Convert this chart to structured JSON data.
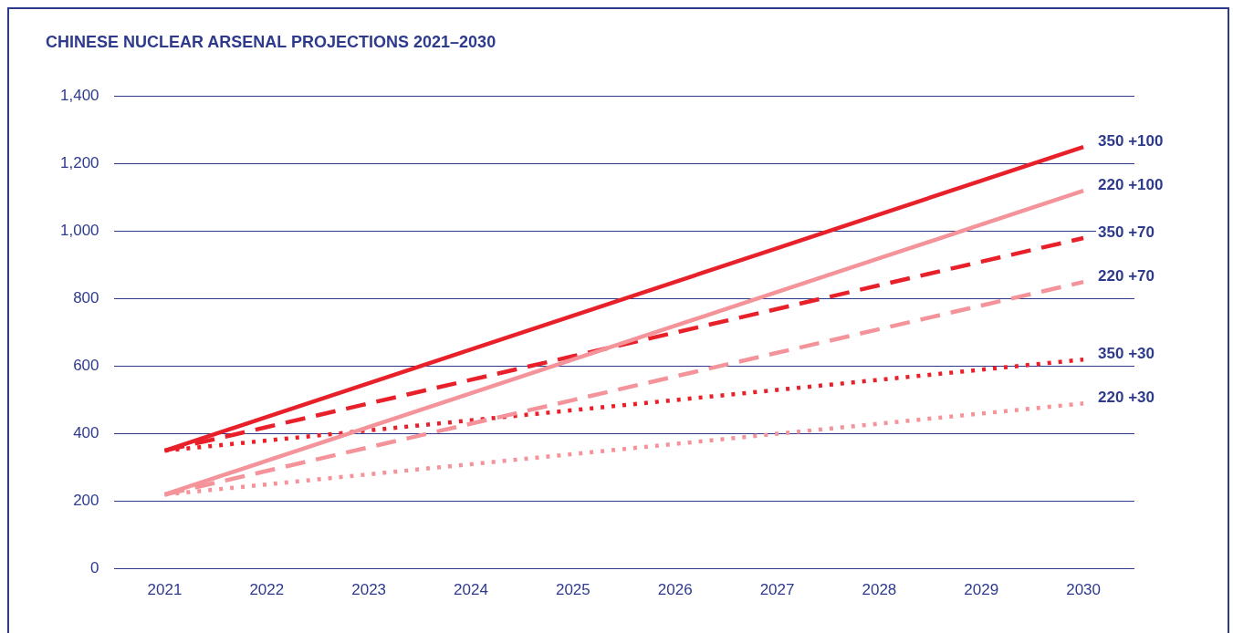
{
  "chart_data": {
    "type": "line",
    "title": "CHINESE NUCLEAR ARSENAL PROJECTIONS 2021–2030",
    "categories": [
      "2021",
      "2022",
      "2023",
      "2024",
      "2025",
      "2026",
      "2027",
      "2028",
      "2029",
      "2030"
    ],
    "ylim": [
      0,
      1400
    ],
    "yticks": [
      0,
      {
        "value": 200,
        "label": "200"
      },
      {
        "value": 400,
        "label": "400"
      },
      {
        "value": 600,
        "label": "600"
      },
      {
        "value": 800,
        "label": "800"
      },
      {
        "value": 1000,
        "label": "1,000"
      },
      {
        "value": 1200,
        "label": "1,200"
      },
      {
        "value": 1400,
        "label": "1,400"
      }
    ],
    "grid": "y",
    "legend": false,
    "marker": "none",
    "series": [
      {
        "name": "350 +100",
        "color": "#e8202a",
        "line_style": "solid",
        "values": [
          350,
          450,
          550,
          650,
          750,
          850,
          950,
          1050,
          1150,
          1250
        ]
      },
      {
        "name": "220 +100",
        "color": "#f4939a",
        "line_style": "solid",
        "values": [
          220,
          320,
          420,
          520,
          620,
          720,
          820,
          920,
          1020,
          1120
        ]
      },
      {
        "name": "350 +70",
        "color": "#e8202a",
        "line_style": "dashed",
        "values": [
          350,
          420,
          490,
          560,
          630,
          700,
          770,
          840,
          910,
          980
        ]
      },
      {
        "name": "220 +70",
        "color": "#f4939a",
        "line_style": "dashed",
        "values": [
          220,
          290,
          360,
          430,
          500,
          570,
          640,
          710,
          780,
          850
        ]
      },
      {
        "name": "350 +30",
        "color": "#e8202a",
        "line_style": "dotted",
        "values": [
          350,
          380,
          410,
          440,
          470,
          500,
          530,
          560,
          590,
          620
        ]
      },
      {
        "name": "220 +30",
        "color": "#f4939a",
        "line_style": "dotted",
        "values": [
          220,
          250,
          280,
          310,
          340,
          370,
          400,
          430,
          460,
          490
        ]
      }
    ]
  }
}
